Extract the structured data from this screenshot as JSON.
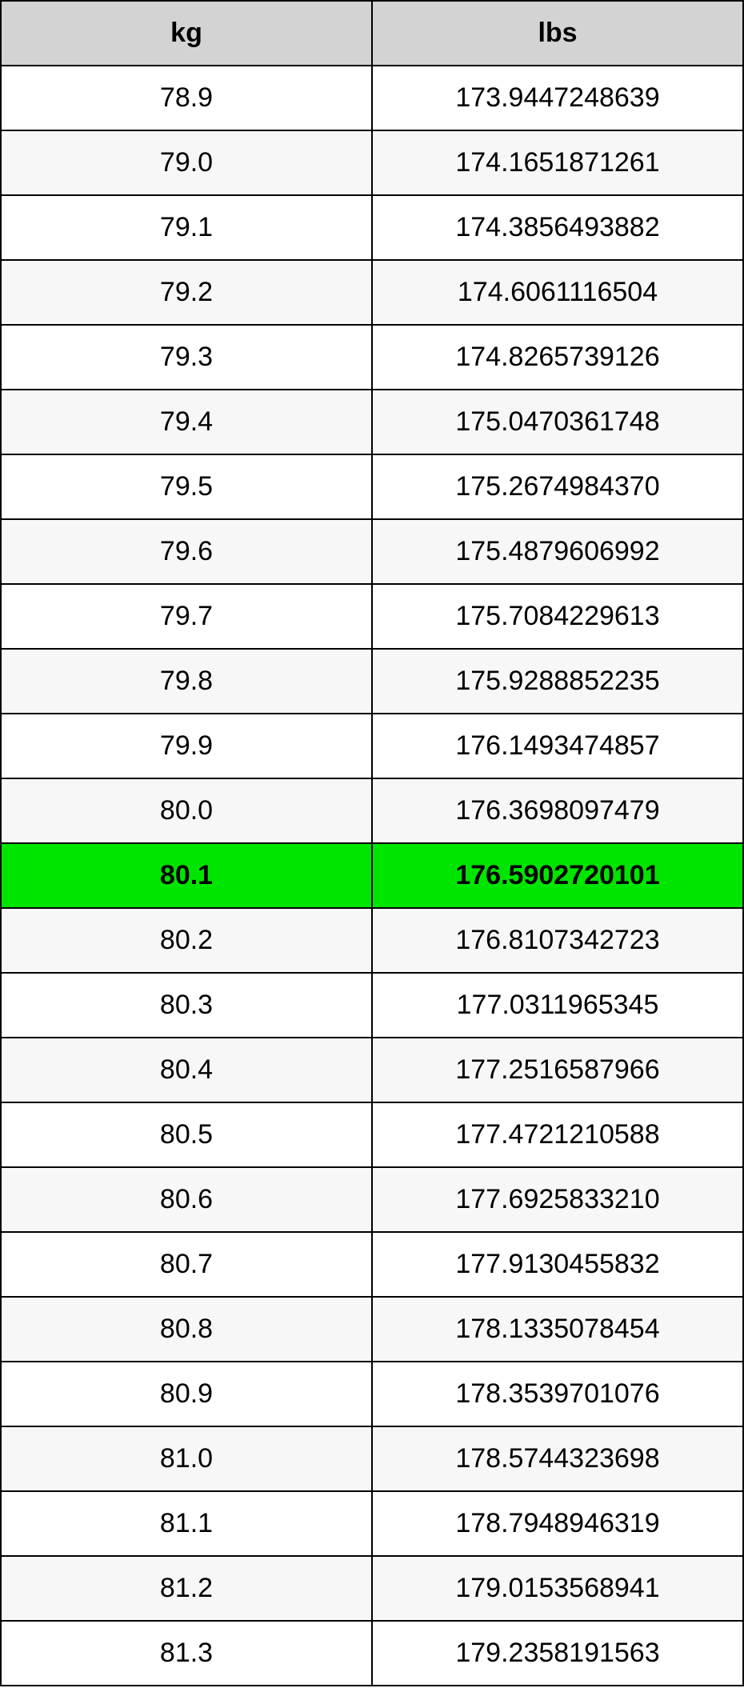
{
  "table": {
    "type": "table",
    "columns": [
      {
        "label": "kg",
        "width_pct": 50,
        "align": "center"
      },
      {
        "label": "lbs",
        "width_pct": 50,
        "align": "center"
      }
    ],
    "rows": [
      {
        "kg": "78.9",
        "lbs": "173.9447248639",
        "highlighted": false
      },
      {
        "kg": "79.0",
        "lbs": "174.1651871261",
        "highlighted": false
      },
      {
        "kg": "79.1",
        "lbs": "174.3856493882",
        "highlighted": false
      },
      {
        "kg": "79.2",
        "lbs": "174.6061116504",
        "highlighted": false
      },
      {
        "kg": "79.3",
        "lbs": "174.8265739126",
        "highlighted": false
      },
      {
        "kg": "79.4",
        "lbs": "175.0470361748",
        "highlighted": false
      },
      {
        "kg": "79.5",
        "lbs": "175.2674984370",
        "highlighted": false
      },
      {
        "kg": "79.6",
        "lbs": "175.4879606992",
        "highlighted": false
      },
      {
        "kg": "79.7",
        "lbs": "175.7084229613",
        "highlighted": false
      },
      {
        "kg": "79.8",
        "lbs": "175.9288852235",
        "highlighted": false
      },
      {
        "kg": "79.9",
        "lbs": "176.1493474857",
        "highlighted": false
      },
      {
        "kg": "80.0",
        "lbs": "176.3698097479",
        "highlighted": false
      },
      {
        "kg": "80.1",
        "lbs": "176.5902720101",
        "highlighted": true
      },
      {
        "kg": "80.2",
        "lbs": "176.8107342723",
        "highlighted": false
      },
      {
        "kg": "80.3",
        "lbs": "177.0311965345",
        "highlighted": false
      },
      {
        "kg": "80.4",
        "lbs": "177.2516587966",
        "highlighted": false
      },
      {
        "kg": "80.5",
        "lbs": "177.4721210588",
        "highlighted": false
      },
      {
        "kg": "80.6",
        "lbs": "177.6925833210",
        "highlighted": false
      },
      {
        "kg": "80.7",
        "lbs": "177.9130455832",
        "highlighted": false
      },
      {
        "kg": "80.8",
        "lbs": "178.1335078454",
        "highlighted": false
      },
      {
        "kg": "80.9",
        "lbs": "178.3539701076",
        "highlighted": false
      },
      {
        "kg": "81.0",
        "lbs": "178.5744323698",
        "highlighted": false
      },
      {
        "kg": "81.1",
        "lbs": "178.7948946319",
        "highlighted": false
      },
      {
        "kg": "81.2",
        "lbs": "179.0153568941",
        "highlighted": false
      },
      {
        "kg": "81.3",
        "lbs": "179.2358191563",
        "highlighted": false
      }
    ],
    "header_bg": "#d3d3d3",
    "row_odd_bg": "#ffffff",
    "row_even_bg": "#f7f7f7",
    "highlight_bg": "#00e500",
    "border_color": "#000000",
    "text_color": "#000000",
    "font_size_pt": 26,
    "header_font_weight": "bold",
    "highlight_font_weight": "bold"
  }
}
